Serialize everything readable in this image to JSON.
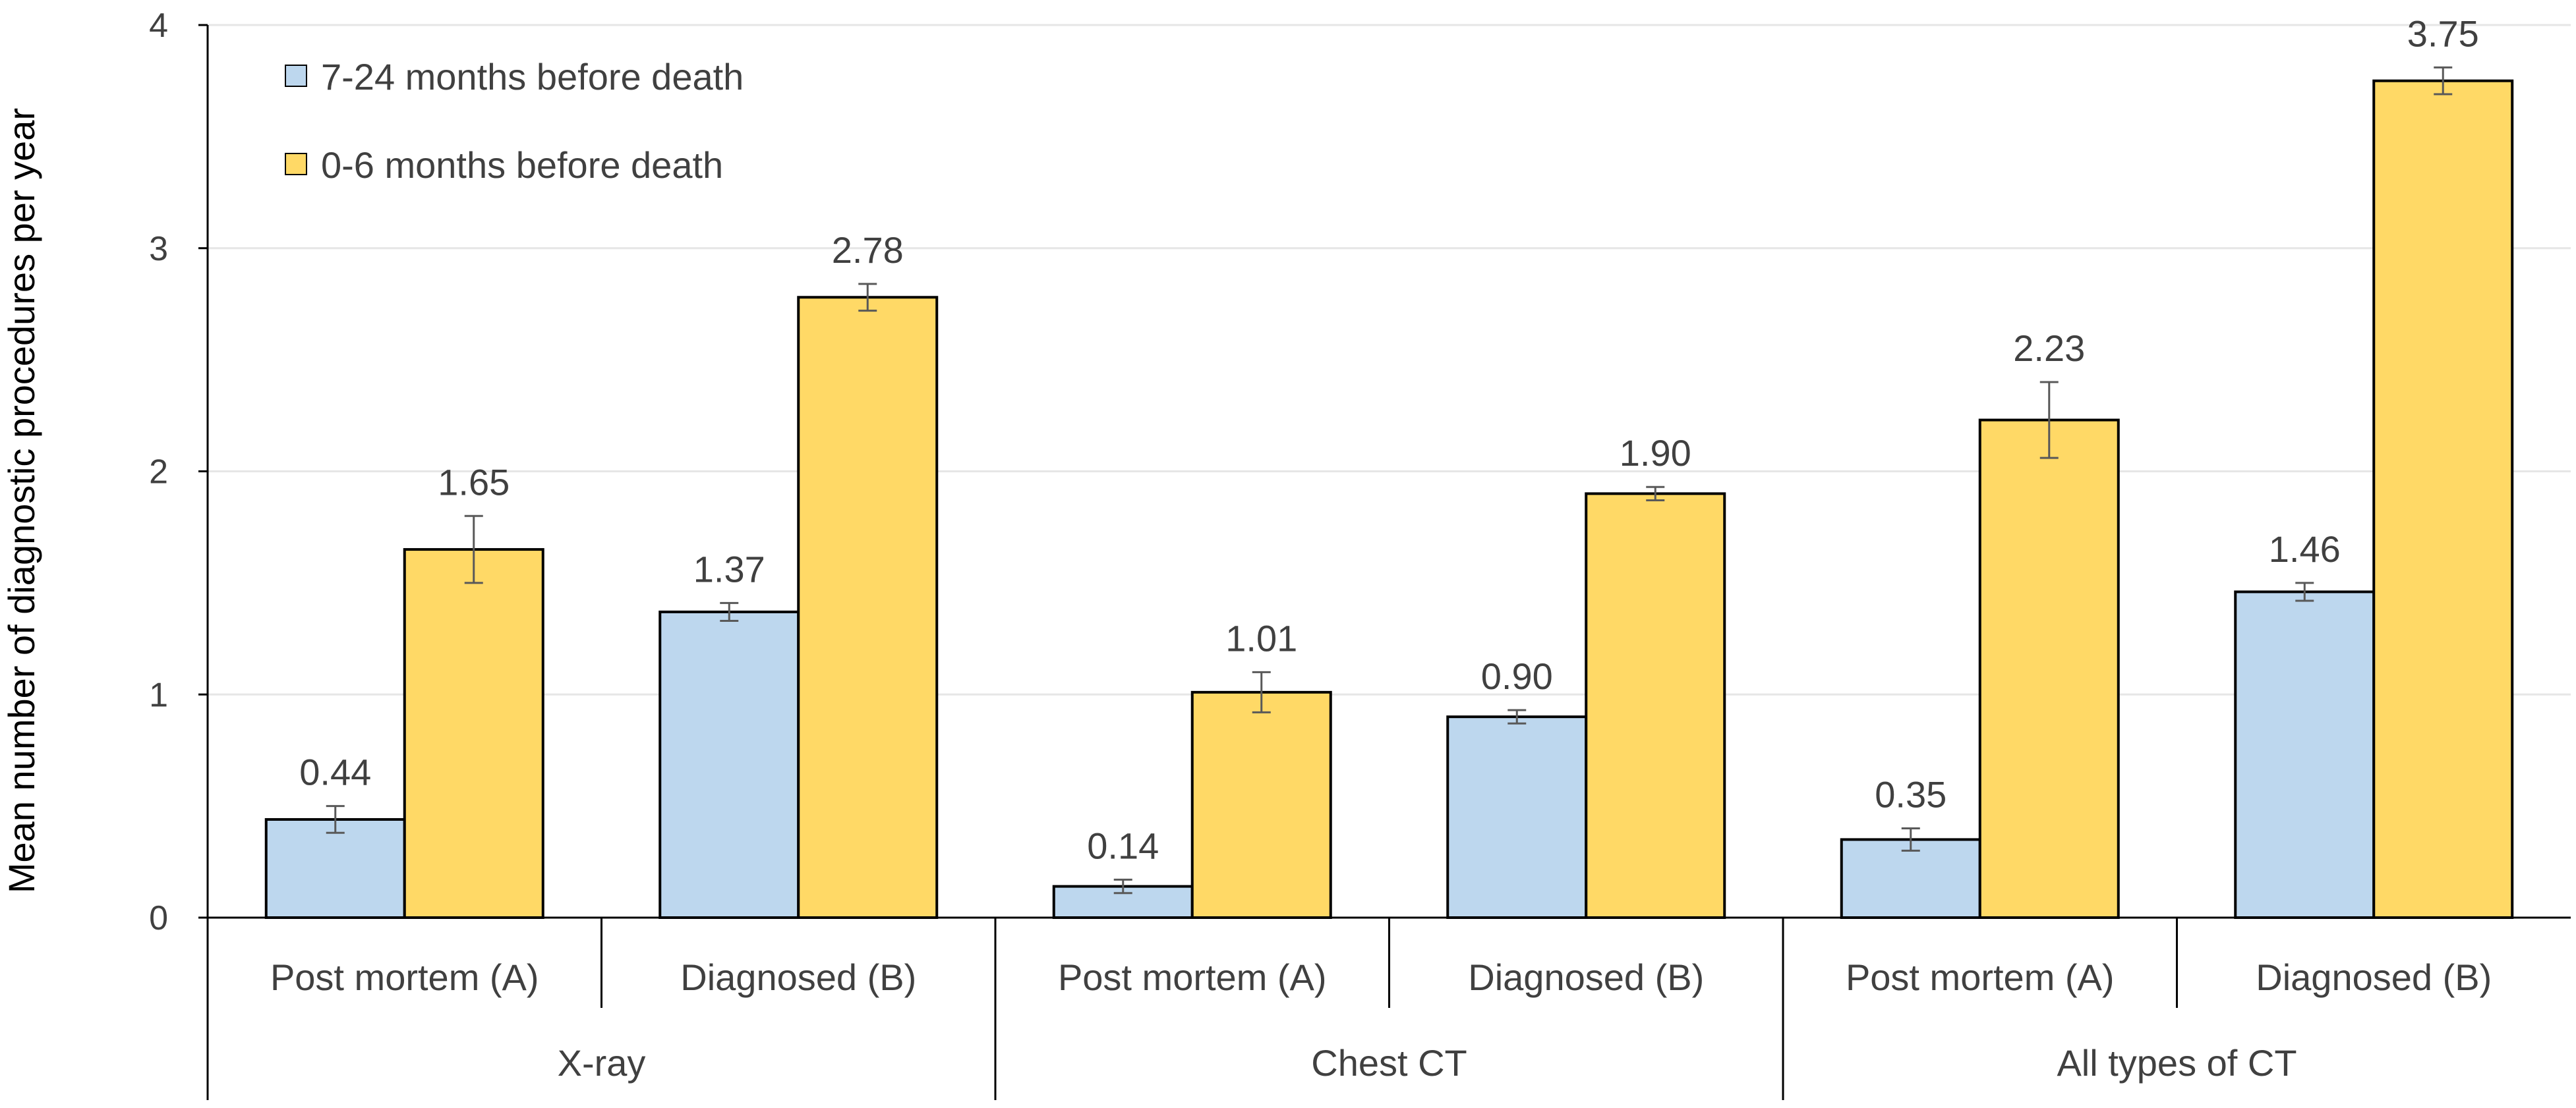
{
  "chart_data": {
    "type": "bar",
    "title": "",
    "xlabel": "",
    "ylabel": "Mean number of diagnostic procedures per year",
    "ylim": [
      0,
      4
    ],
    "yticks": [
      "0",
      "1",
      "2",
      "3",
      "4"
    ],
    "grid": true,
    "legend_position": "top-left",
    "groups": [
      {
        "label": "X-ray",
        "categories": [
          "Post mortem (A)",
          "Diagnosed (B)"
        ]
      },
      {
        "label": "Chest CT",
        "categories": [
          "Post mortem (A)",
          "Diagnosed (B)"
        ]
      },
      {
        "label": "All types of CT",
        "categories": [
          "Post mortem (A)",
          "Diagnosed (B)"
        ]
      }
    ],
    "series": [
      {
        "name": "7-24 months before death",
        "color": "#BDD7EE",
        "values": [
          0.44,
          1.37,
          0.14,
          0.9,
          0.35,
          1.46
        ],
        "labels": [
          "0.44",
          "1.37",
          "0.14",
          "0.90",
          "0.35",
          "1.46"
        ],
        "error": [
          0.06,
          0.04,
          0.03,
          0.03,
          0.05,
          0.04
        ]
      },
      {
        "name": "0-6 months before death",
        "color": "#FFD966",
        "values": [
          1.65,
          2.78,
          1.01,
          1.9,
          2.23,
          3.75
        ],
        "labels": [
          "1.65",
          "2.78",
          "1.01",
          "1.90",
          "2.23",
          "3.75"
        ],
        "error": [
          0.15,
          0.06,
          0.09,
          0.03,
          0.17,
          0.06
        ]
      }
    ]
  }
}
